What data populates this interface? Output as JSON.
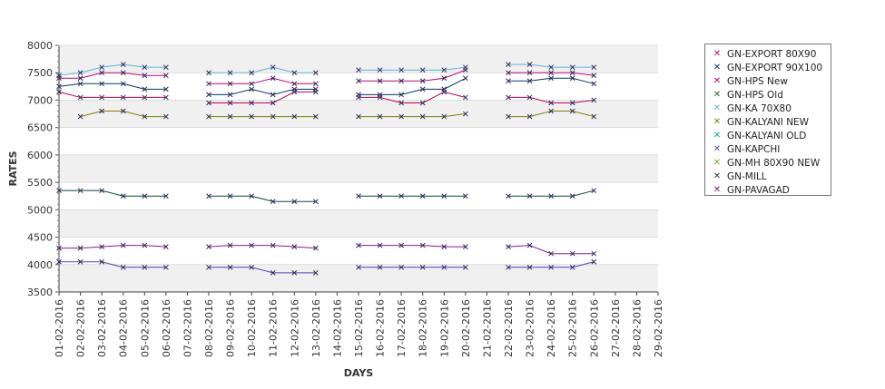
{
  "chart_data": {
    "type": "line",
    "xlabel": "DAYS",
    "ylabel": "RATES",
    "ylim": [
      3500,
      8000
    ],
    "yticks": [
      3500,
      4000,
      4500,
      5000,
      5500,
      6000,
      6500,
      7000,
      7500,
      8000
    ],
    "grid": "alternating horizontal bands",
    "legend_position": "right",
    "categories": [
      "01-02-2016",
      "02-02-2016",
      "03-02-2016",
      "04-02-2016",
      "05-02-2016",
      "06-02-2016",
      "07-02-2016",
      "08-02-2016",
      "09-02-2016",
      "10-02-2016",
      "11-02-2016",
      "12-02-2016",
      "13-02-2016",
      "14-02-2016",
      "15-02-2016",
      "16-02-2016",
      "17-02-2016",
      "18-02-2016",
      "19-02-2016",
      "20-02-2016",
      "21-02-2016",
      "22-02-2016",
      "23-02-2016",
      "24-02-2016",
      "25-02-2016",
      "26-02-2016",
      "27-02-2016",
      "28-02-2016",
      "29-02-2016"
    ],
    "series": [
      {
        "name": "GN-EXPORT 80X90",
        "color": "#c0007a",
        "values": [
          7400,
          7400,
          7500,
          7500,
          7450,
          7450,
          null,
          7300,
          7300,
          7300,
          7400,
          7300,
          7300,
          null,
          7350,
          7350,
          7350,
          7350,
          7400,
          7550,
          null,
          7500,
          7500,
          7500,
          7500,
          7450,
          null,
          null,
          null
        ]
      },
      {
        "name": "GN-EXPORT 90X100",
        "color": "#003a6b",
        "values": [
          7250,
          7300,
          7300,
          7300,
          7200,
          7200,
          null,
          7100,
          7100,
          7200,
          7100,
          7200,
          7200,
          null,
          7100,
          7100,
          7100,
          7200,
          7200,
          7400,
          null,
          7350,
          7350,
          7400,
          7400,
          7300,
          null,
          null,
          null
        ]
      },
      {
        "name": "GN-HPS New",
        "color": "#c0005a",
        "values": [
          7150,
          7050,
          7050,
          7050,
          7050,
          7050,
          null,
          6950,
          6950,
          6950,
          6950,
          7150,
          7150,
          null,
          7050,
          7050,
          6950,
          6950,
          7150,
          7050,
          null,
          7050,
          7050,
          6950,
          6950,
          7000,
          null,
          null,
          null
        ]
      },
      {
        "name": "GN-HPS Old",
        "color": "#1a6a1a",
        "values": [
          null,
          null,
          null,
          null,
          null,
          null,
          null,
          null,
          null,
          null,
          null,
          null,
          null,
          null,
          null,
          null,
          null,
          null,
          null,
          null,
          null,
          null,
          null,
          null,
          null,
          null,
          null,
          null,
          null
        ]
      },
      {
        "name": "GN-KA 70X80",
        "color": "#5ab4d6",
        "values": [
          7450,
          7500,
          7600,
          7650,
          7600,
          7600,
          null,
          7500,
          7500,
          7500,
          7600,
          7500,
          7500,
          null,
          7550,
          7550,
          7550,
          7550,
          7550,
          7600,
          null,
          7650,
          7650,
          7600,
          7600,
          7600,
          null,
          null,
          null
        ]
      },
      {
        "name": "GN-KALYANI NEW",
        "color": "#808000",
        "values": [
          null,
          6700,
          6800,
          6800,
          6700,
          6700,
          null,
          6700,
          6700,
          6700,
          6700,
          6700,
          6700,
          null,
          6700,
          6700,
          6700,
          6700,
          6700,
          6750,
          null,
          6700,
          6700,
          6800,
          6800,
          6700,
          null,
          null,
          null
        ]
      },
      {
        "name": "GN-KALYANI OLD",
        "color": "#1aa08c",
        "values": [
          null,
          null,
          null,
          null,
          null,
          null,
          null,
          null,
          null,
          null,
          null,
          null,
          null,
          null,
          null,
          null,
          null,
          null,
          null,
          null,
          null,
          null,
          null,
          null,
          null,
          null,
          null,
          null,
          null
        ]
      },
      {
        "name": "GN-KAPCHI",
        "color": "#5a3fc0",
        "values": [
          4050,
          4050,
          4050,
          3950,
          3950,
          3950,
          null,
          3950,
          3950,
          3950,
          3850,
          3850,
          3850,
          null,
          3950,
          3950,
          3950,
          3950,
          3950,
          3950,
          null,
          3950,
          3950,
          3950,
          3950,
          4050,
          null,
          null,
          null
        ]
      },
      {
        "name": "GN-MH 80X90 NEW",
        "color": "#6ab020",
        "values": [
          null,
          null,
          null,
          null,
          null,
          null,
          null,
          null,
          null,
          null,
          null,
          null,
          null,
          null,
          null,
          null,
          null,
          null,
          null,
          null,
          null,
          null,
          null,
          null,
          null,
          null,
          null,
          null,
          null
        ]
      },
      {
        "name": "GN-MILL",
        "color": "#0a4a3a",
        "values": [
          5350,
          5350,
          5350,
          5250,
          5250,
          5250,
          null,
          5250,
          5250,
          5250,
          5150,
          5150,
          5150,
          null,
          5250,
          5250,
          5250,
          5250,
          5250,
          5250,
          null,
          5250,
          5250,
          5250,
          5250,
          5350,
          null,
          null,
          null
        ]
      },
      {
        "name": "GN-PAVAGAD",
        "color": "#8a1a8a",
        "values": [
          4300,
          4300,
          4325,
          4350,
          4350,
          4325,
          null,
          4325,
          4350,
          4350,
          4350,
          4325,
          4300,
          null,
          4350,
          4350,
          4350,
          4350,
          4325,
          4325,
          null,
          4325,
          4350,
          4200,
          4200,
          4200,
          null,
          null,
          null
        ]
      }
    ]
  }
}
